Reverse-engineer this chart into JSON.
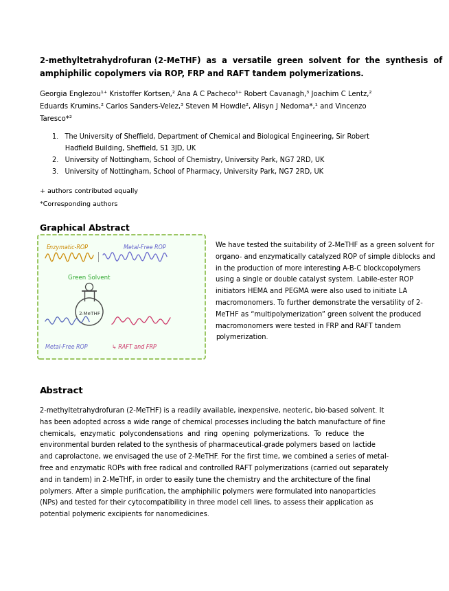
{
  "title_line1": "2-methyltetrahydrofuran (2-MeTHF)  as  a  versatile  green  solvent  for  the  synthesis  of",
  "title_line2": "amphiphilic copolymers via ROP, FRP and RAFT tandem polymerizations.",
  "authors_line1": "Georgia Englezou¹⁺ Kristoffer Kortsen,² Ana A C Pacheco¹⁺ Robert Cavanagh,³ Joachim C Lentz,²",
  "authors_line2": "Eduards Krumins,² Carlos Sanders-Velez,³ Steven M Howdle², Alisyn J Nedoma*,¹ and Vincenzo",
  "authors_line3": "Taresco*²",
  "affil1a": "1.   The University of Sheffield, Department of Chemical and Biological Engineering, Sir Robert",
  "affil1b": "      Hadfield Building, Sheffield, S1 3JD, UK",
  "affil2": "2.   University of Nottingham, School of Chemistry, University Park, NG7 2RD, UK",
  "affil3": "3.   University of Nottingham, School of Pharmacy, University Park, NG7 2RD, UK",
  "note1": "+ authors contributed equally",
  "note2": "*Corresponding authors",
  "graphical_abstract_title": "Graphical Abstract",
  "graphical_text_lines": [
    "We have tested the suitability of 2-MeTHF as a green solvent for",
    "organo- and enzymatically catalyzed ROP of simple diblocks and",
    "in the production of more interesting A-B-C blockcopolymers",
    "using a single or double catalyst system. Labile-ester ROP",
    "initiators HEMA and PEGMA were also used to initiate LA",
    "macromonomers. To further demonstrate the versatility of 2-",
    "MeTHF as “multipolymerization” green solvent the produced",
    "macromonomers were tested in FRP and RAFT tandem",
    "polymerization."
  ],
  "abstract_title": "Abstract",
  "abstract_text_lines": [
    "2-methyltetrahydrofuran (2-MeTHF) is a readily available, inexpensive, neoteric, bio-based solvent. It",
    "has been adopted across a wide range of chemical processes including the batch manufacture of fine",
    "chemicals,  enzymatic  polycondensations  and  ring  opening  polymerizations.  To  reduce  the",
    "environmental burden related to the synthesis of pharmaceutical-grade polymers based on lactide",
    "and caprolactone, we envisaged the use of 2-MeTHF. For the first time, we combined a series of metal-",
    "free and enzymatic ROPs with free radical and controlled RAFT polymerizations (carried out separately",
    "and in tandem) in 2-MeTHF, in order to easily tune the chemistry and the architecture of the final",
    "polymers. After a simple purification, the amphiphilic polymers were formulated into nanoparticles",
    "(NPs) and tested for their cytocompatibility in three model cell lines, to assess their application as",
    "potential polymeric excipients for nanomedicines."
  ],
  "label_enzymatic": "Enzymatic-ROP",
  "label_metalfree_top": "Metal-Free ROP",
  "label_green_solvent": "Green Solvent",
  "label_2methf": "2-MeTHF",
  "label_metalfree_bottom": "Metal-Free ROP",
  "label_arrow_raft": "↳",
  "label_raft_frp": "RAFT and FRP",
  "color_enzymatic": "#cc8800",
  "color_metalfree": "#6666cc",
  "color_green": "#33aa33",
  "color_dashed_border": "#88bb44",
  "color_pink": "#cc3366",
  "color_flask": "#444444",
  "bg_color": "#ffffff",
  "text_color": "#000000",
  "page_width": 5.95,
  "page_height": 8.42
}
